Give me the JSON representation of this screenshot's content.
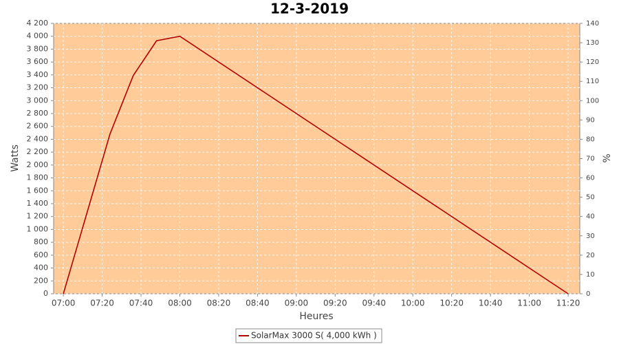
{
  "chart_data": {
    "type": "line",
    "title": "12-3-2019",
    "x_label": "Heures",
    "y_label": "Watts",
    "y2_label": "%",
    "x": [
      "07:00",
      "07:24",
      "07:36",
      "07:48",
      "08:00",
      "11:20"
    ],
    "series": [
      {
        "name": "SolarMax 3000 S( 4,000 kWh )",
        "color": "#b00000",
        "values": [
          0,
          2480,
          3390,
          3930,
          4000,
          0
        ]
      }
    ],
    "xlim": [
      "06:55",
      "11:26"
    ],
    "xticks": [
      "07:00",
      "07:20",
      "07:40",
      "08:00",
      "08:20",
      "08:40",
      "09:00",
      "09:20",
      "09:40",
      "10:00",
      "10:20",
      "10:40",
      "11:00",
      "11:20"
    ],
    "ylim": [
      0,
      4200
    ],
    "yticks": [
      0,
      200,
      400,
      600,
      800,
      {
        "value": 1000,
        "label": "1 000"
      },
      {
        "value": 1200,
        "label": "1 200"
      },
      {
        "value": 1400,
        "label": "1 400"
      },
      {
        "value": 1600,
        "label": "1 600"
      },
      {
        "value": 1800,
        "label": "1 800"
      },
      {
        "value": 2000,
        "label": "2 000"
      },
      {
        "value": 2200,
        "label": "2 200"
      },
      {
        "value": 2400,
        "label": "2 400"
      },
      {
        "value": 2600,
        "label": "2 600"
      },
      {
        "value": 2800,
        "label": "2 800"
      },
      {
        "value": 3000,
        "label": "3 000"
      },
      {
        "value": 3200,
        "label": "3 200"
      },
      {
        "value": 3400,
        "label": "3 400"
      },
      {
        "value": 3600,
        "label": "3 600"
      },
      {
        "value": 3800,
        "label": "3 800"
      },
      {
        "value": 4000,
        "label": "4 000"
      },
      {
        "value": 4200,
        "label": "4 200"
      }
    ],
    "y2lim": [
      0,
      140
    ],
    "y2ticks": [
      0,
      10,
      20,
      30,
      40,
      50,
      60,
      70,
      80,
      90,
      100,
      110,
      120,
      130,
      140
    ],
    "grid": true,
    "plot_background": "#ffcc99",
    "legend": "bottom"
  }
}
